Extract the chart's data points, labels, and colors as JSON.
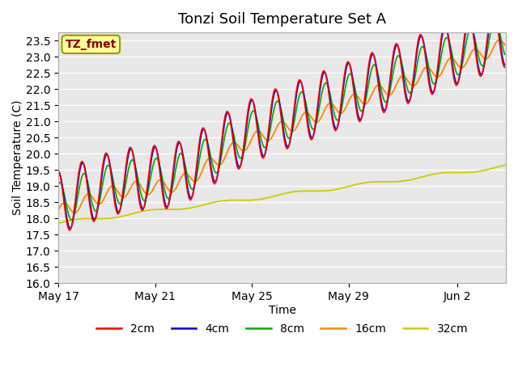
{
  "title": "Tonzi Soil Temperature Set A",
  "xlabel": "Time",
  "ylabel": "Soil Temperature (C)",
  "ylim": [
    16.0,
    23.75
  ],
  "yticks": [
    16.0,
    16.5,
    17.0,
    17.5,
    18.0,
    18.5,
    19.0,
    19.5,
    20.0,
    20.5,
    21.0,
    21.5,
    22.0,
    22.5,
    23.0,
    23.5
  ],
  "xtick_labels": [
    "May 17",
    "May 21",
    "May 25",
    "May 29",
    "Jun 2"
  ],
  "xtick_positions": [
    0,
    4,
    8,
    12,
    16.5
  ],
  "series_colors": {
    "2cm": "#ff0000",
    "4cm": "#0000cc",
    "8cm": "#00aa00",
    "16cm": "#ff8800",
    "32cm": "#cccc00"
  },
  "legend_labels": [
    "2cm",
    "4cm",
    "8cm",
    "16cm",
    "32cm"
  ],
  "annotation_text": "TZ_fmet",
  "annotation_bg": "#ffff99",
  "annotation_border": "#999900",
  "annotation_text_color": "#880000",
  "title_fontsize": 13,
  "axis_fontsize": 10,
  "legend_fontsize": 10,
  "n_days": 18.5,
  "dt": 0.05
}
